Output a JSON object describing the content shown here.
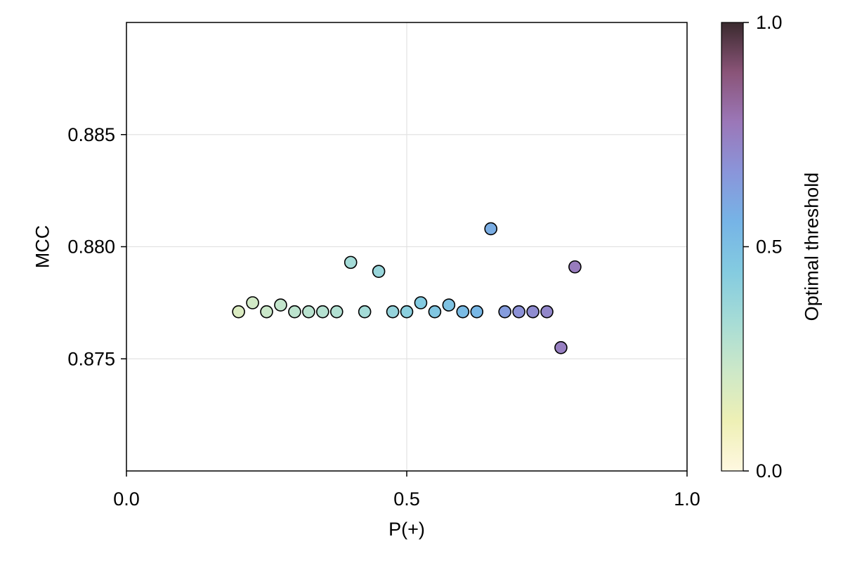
{
  "chart_data": {
    "type": "scatter",
    "title": "",
    "xlabel": "P(+)",
    "ylabel": "MCC",
    "xlim": [
      0.0,
      1.0
    ],
    "ylim": [
      0.87,
      0.89
    ],
    "x_ticks": [
      0.0,
      0.5,
      1.0
    ],
    "x_tick_labels": [
      "0.0",
      "0.5",
      "1.0"
    ],
    "y_ticks": [
      0.875,
      0.88,
      0.885
    ],
    "y_tick_labels": [
      "0.875",
      "0.880",
      "0.885"
    ],
    "grid": true,
    "colorbar": {
      "label": "Optimal threshold",
      "range": [
        0.0,
        1.0
      ],
      "ticks": [
        0.0,
        0.5,
        1.0
      ],
      "tick_labels": [
        "0.0",
        "0.5",
        "1.0"
      ],
      "colormap": [
        "#fff8e1",
        "#eef0b5",
        "#cde8c8",
        "#a6dcd6",
        "#84cbe0",
        "#76b4e6",
        "#8a95da",
        "#9b77b8",
        "#8a5478",
        "#3a2a2e"
      ]
    },
    "points": [
      {
        "x": 0.2,
        "y": 0.8771,
        "c": 0.18
      },
      {
        "x": 0.225,
        "y": 0.8775,
        "c": 0.21
      },
      {
        "x": 0.25,
        "y": 0.8771,
        "c": 0.23
      },
      {
        "x": 0.275,
        "y": 0.8774,
        "c": 0.25
      },
      {
        "x": 0.3,
        "y": 0.8771,
        "c": 0.27
      },
      {
        "x": 0.325,
        "y": 0.8771,
        "c": 0.28
      },
      {
        "x": 0.35,
        "y": 0.8771,
        "c": 0.29
      },
      {
        "x": 0.375,
        "y": 0.8771,
        "c": 0.3
      },
      {
        "x": 0.4,
        "y": 0.8793,
        "c": 0.34
      },
      {
        "x": 0.425,
        "y": 0.8771,
        "c": 0.34
      },
      {
        "x": 0.45,
        "y": 0.8789,
        "c": 0.38
      },
      {
        "x": 0.475,
        "y": 0.8771,
        "c": 0.39
      },
      {
        "x": 0.5,
        "y": 0.8771,
        "c": 0.42
      },
      {
        "x": 0.525,
        "y": 0.8775,
        "c": 0.45
      },
      {
        "x": 0.55,
        "y": 0.8771,
        "c": 0.47
      },
      {
        "x": 0.575,
        "y": 0.8774,
        "c": 0.49
      },
      {
        "x": 0.6,
        "y": 0.8771,
        "c": 0.52
      },
      {
        "x": 0.625,
        "y": 0.8771,
        "c": 0.54
      },
      {
        "x": 0.65,
        "y": 0.8808,
        "c": 0.58
      },
      {
        "x": 0.675,
        "y": 0.8771,
        "c": 0.64
      },
      {
        "x": 0.7,
        "y": 0.8771,
        "c": 0.68
      },
      {
        "x": 0.725,
        "y": 0.8771,
        "c": 0.7
      },
      {
        "x": 0.75,
        "y": 0.8771,
        "c": 0.72
      },
      {
        "x": 0.775,
        "y": 0.8755,
        "c": 0.75
      },
      {
        "x": 0.8,
        "y": 0.8791,
        "c": 0.76
      }
    ]
  }
}
